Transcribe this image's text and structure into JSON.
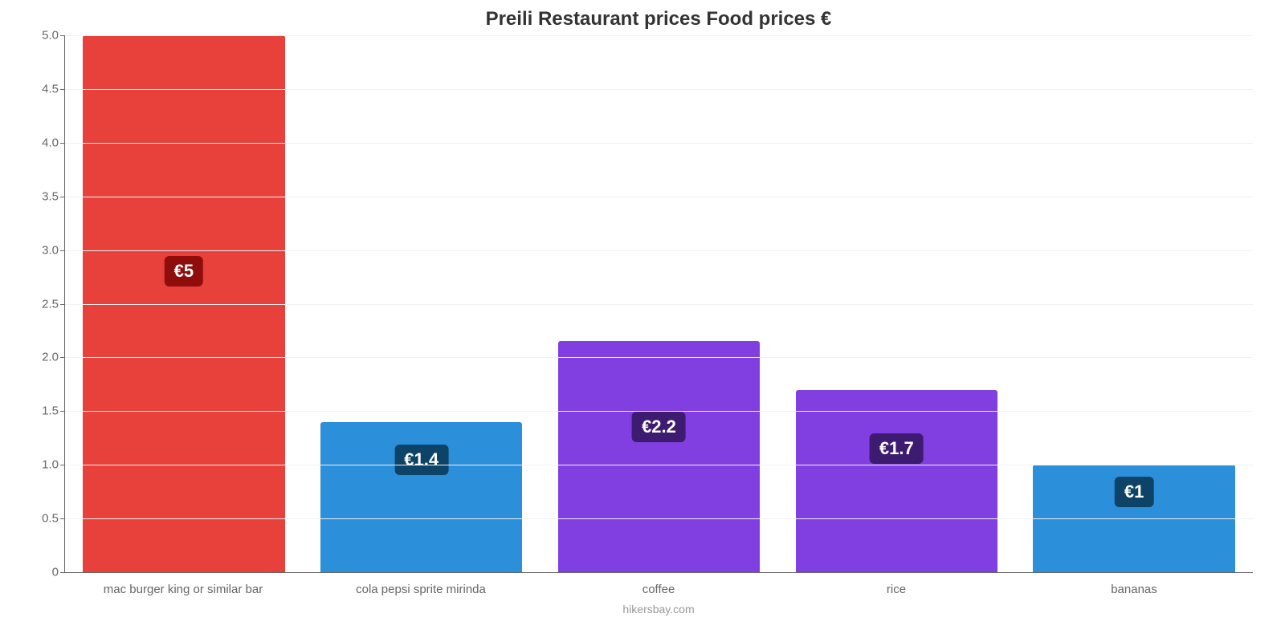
{
  "chart": {
    "type": "bar",
    "title": "Preili Restaurant prices Food prices €",
    "title_fontsize": 24,
    "title_color": "#333333",
    "credit": "hikersbay.com",
    "credit_color": "#999999",
    "background_color": "#ffffff",
    "grid_color": "#f1f1f1",
    "axis_color": "#666666",
    "tick_label_color": "#666666",
    "tick_label_fontsize": 15,
    "x_label_fontsize": 15,
    "ylim": [
      0,
      5.0
    ],
    "yticks": [
      0,
      0.5,
      1.0,
      1.5,
      2.0,
      2.5,
      3.0,
      3.5,
      4.0,
      4.5,
      5.0
    ],
    "ytick_labels": [
      "0",
      "0.5",
      "1.0",
      "1.5",
      "2.0",
      "2.5",
      "3.0",
      "3.5",
      "4.0",
      "4.5",
      "5.0"
    ],
    "bar_width_pct": 85,
    "badge_fontsize": 22,
    "badge_text_color": "#ffffff",
    "categories": [
      "mac burger king or similar bar",
      "cola pepsi sprite mirinda",
      "coffee",
      "rice",
      "bananas"
    ],
    "values": [
      5.0,
      1.4,
      2.15,
      1.7,
      1.0
    ],
    "value_labels": [
      "€5",
      "€1.4",
      "€2.2",
      "€1.7",
      "€1"
    ],
    "bar_colors": [
      "#e8403a",
      "#2b8fd9",
      "#813ee0",
      "#813ee0",
      "#2b8fd9"
    ],
    "badge_colors": [
      "#8f0e0b",
      "#0d4367",
      "#3d1b70",
      "#3d1b70",
      "#0d4367"
    ],
    "badge_y_values": [
      2.8,
      1.05,
      1.35,
      1.15,
      0.75
    ]
  }
}
